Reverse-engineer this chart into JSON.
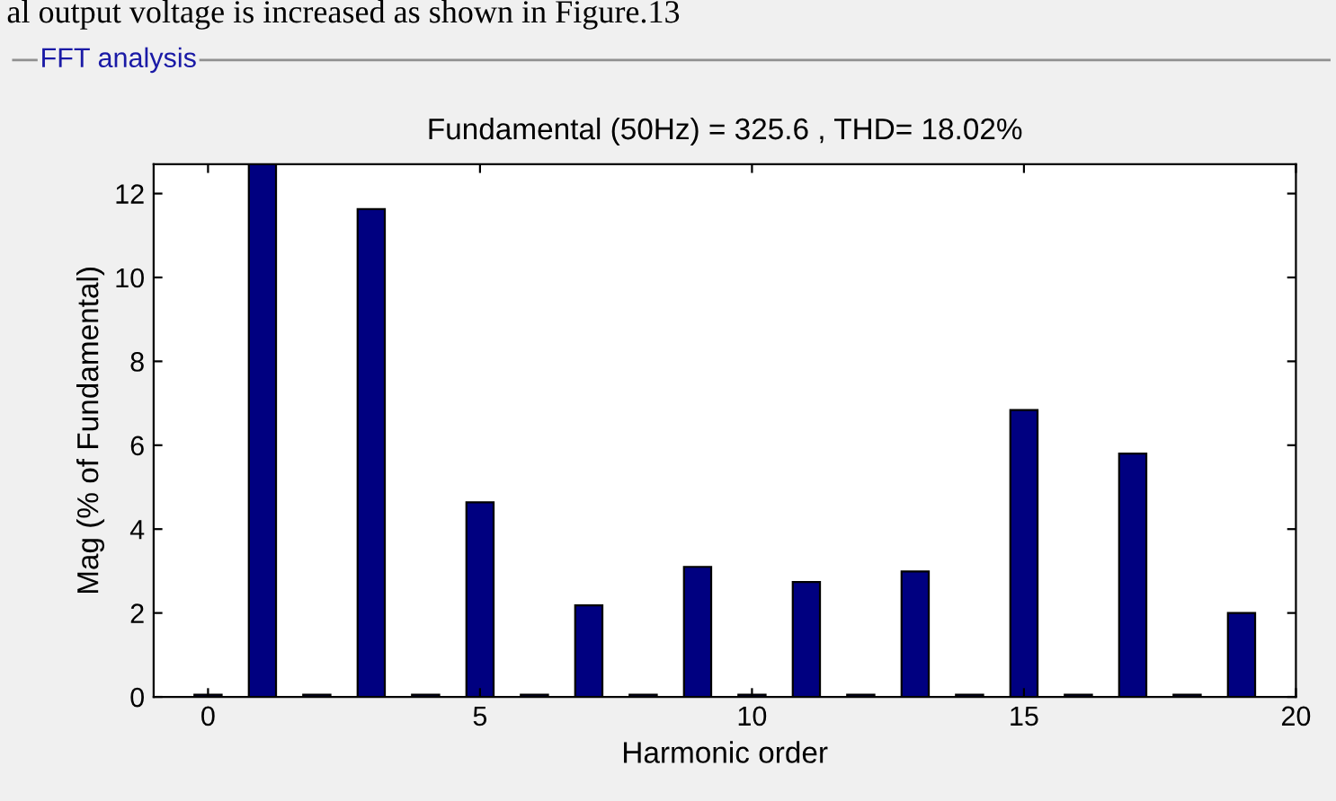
{
  "chart_data": {
    "type": "bar",
    "title": "Fundamental (50Hz) = 325.6 , THD= 18.02%",
    "xlabel": "Harmonic order",
    "ylabel": "Mag (% of Fundamental)",
    "annotations": [
      "al output voltage is increased as shown in Figure.13",
      "FFT analysis"
    ],
    "x": [
      0,
      1,
      2,
      3,
      4,
      5,
      6,
      7,
      8,
      9,
      10,
      11,
      12,
      13,
      14,
      15,
      16,
      17,
      18,
      19
    ],
    "values": [
      0.05,
      12.7,
      0.05,
      11.63,
      0.05,
      4.64,
      0.05,
      2.18,
      0.05,
      3.1,
      0.05,
      2.74,
      0.05,
      2.99,
      0.05,
      6.84,
      0.05,
      5.8,
      0.05,
      2.0
    ],
    "color": "#000080",
    "xlim": [
      -1,
      20
    ],
    "ylim": [
      0,
      12.7
    ],
    "xticks": [
      0,
      5,
      10,
      15,
      20
    ],
    "yticks": [
      0,
      2,
      4,
      6,
      8,
      10,
      12
    ],
    "grid": false,
    "legend": false
  }
}
